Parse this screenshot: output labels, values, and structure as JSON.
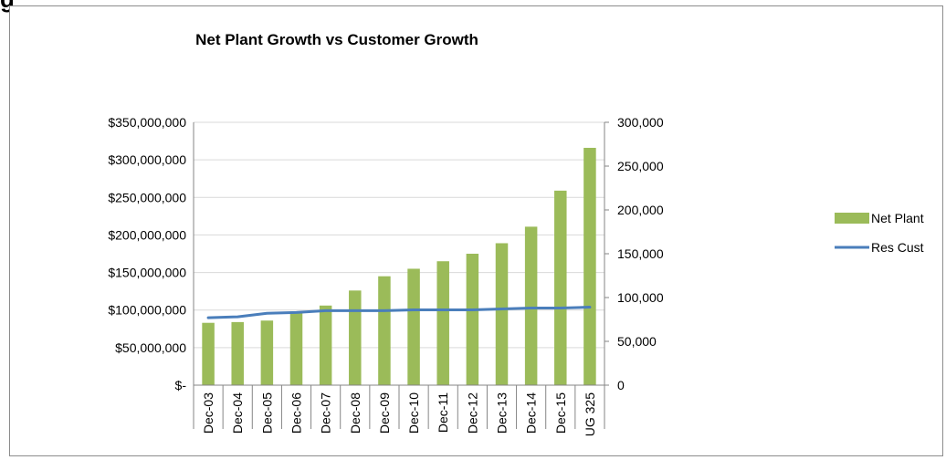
{
  "page": {
    "clipped_heading_fragment": "g"
  },
  "chart_data": {
    "type": "bar",
    "title": "Net Plant Growth vs Customer Growth",
    "categories": [
      "Dec-03",
      "Dec-04",
      "Dec-05",
      "Dec-06",
      "Dec-07",
      "Dec-08",
      "Dec-09",
      "Dec-10",
      "Dec-11",
      "Dec-12",
      "Dec-13",
      "Dec-14",
      "Dec-15",
      "UG 325"
    ],
    "series": [
      {
        "name": "Net Plant",
        "type": "bar",
        "axis": "left",
        "color": "#9bbb59",
        "values": [
          83000000,
          84000000,
          86000000,
          96000000,
          106000000,
          126000000,
          145000000,
          155000000,
          165000000,
          175000000,
          189000000,
          211000000,
          259000000,
          316000000
        ]
      },
      {
        "name": "Res Cust",
        "type": "line",
        "axis": "right",
        "color": "#4a7ebb",
        "values": [
          77000,
          78000,
          82000,
          83000,
          85000,
          85000,
          85000,
          86000,
          86000,
          86000,
          87000,
          88000,
          88000,
          89000
        ]
      }
    ],
    "y_left": {
      "min": 0,
      "max": 350000000,
      "ticks": [
        0,
        50000000,
        100000000,
        150000000,
        200000000,
        250000000,
        300000000,
        350000000
      ],
      "tick_labels": [
        "$-",
        "$50,000,000",
        "$100,000,000",
        "$150,000,000",
        "$200,000,000",
        "$250,000,000",
        "$300,000,000",
        "$350,000,000"
      ]
    },
    "y_right": {
      "min": 0,
      "max": 300000,
      "ticks": [
        0,
        50000,
        100000,
        150000,
        200000,
        250000,
        300000
      ],
      "tick_labels": [
        "0",
        "50,000",
        "100,000",
        "150,000",
        "200,000",
        "250,000",
        "300,000"
      ]
    },
    "grid": true,
    "legend": {
      "position": "right",
      "entries": [
        "Net Plant",
        "Res Cust"
      ]
    }
  }
}
